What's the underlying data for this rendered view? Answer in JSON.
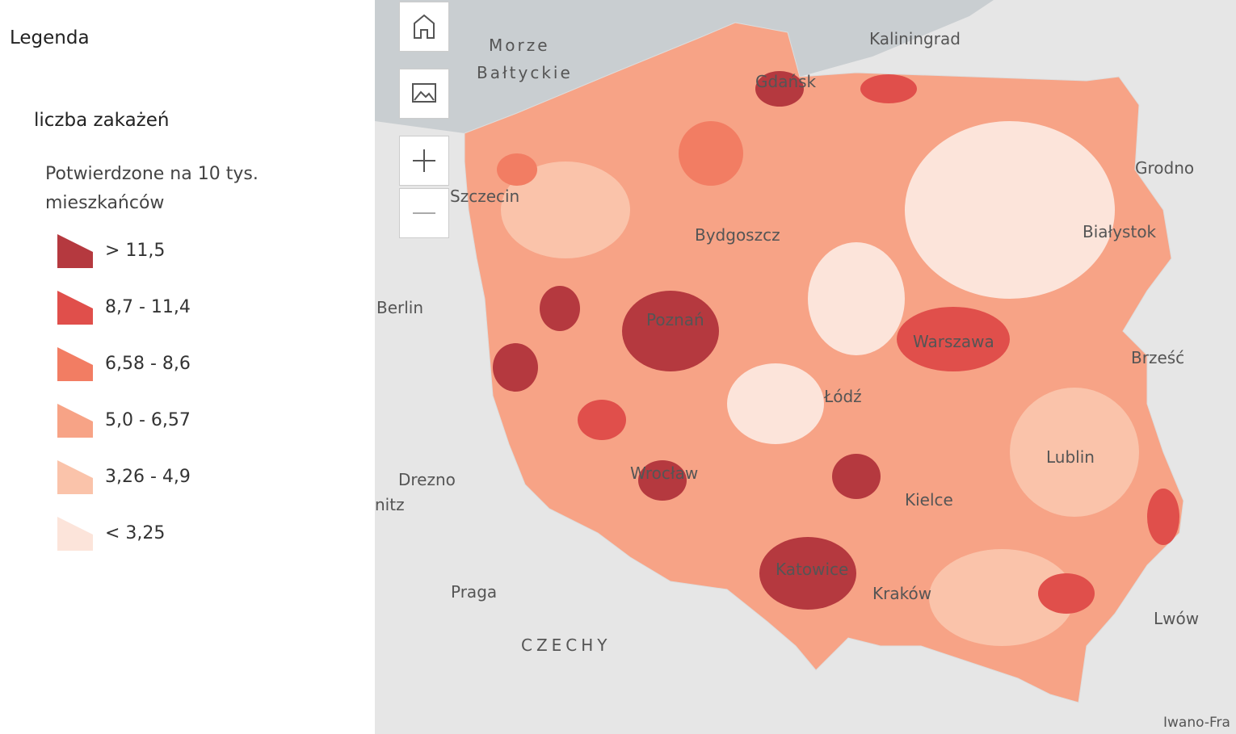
{
  "legend": {
    "title": "Legenda",
    "layer_title": "liczba zakażeń",
    "field_label": "Potwierdzone na 10 tys. mieszkańców",
    "items": [
      {
        "label": "> 11,5",
        "color": "#b5393f"
      },
      {
        "label": "8,7 - 11,4",
        "color": "#e04f4b"
      },
      {
        "label": "6,58 - 8,6",
        "color": "#f27d63"
      },
      {
        "label": "5,0 - 6,57",
        "color": "#f7a386"
      },
      {
        "label": "3,26 - 4,9",
        "color": "#fac3aa"
      },
      {
        "label": "< 3,25",
        "color": "#fce4da"
      }
    ]
  },
  "map": {
    "places": {
      "sea_line1": "Morze",
      "sea_line2": "Bałtyckie",
      "kaliningrad": "Kaliningrad",
      "gdansk": "Gdańsk",
      "grodno": "Grodno",
      "szczecin": "Szczecin",
      "bydgoszcz": "Bydgoszcz",
      "bialystok": "Białystok",
      "berlin": "Berlin",
      "poznan": "Poznań",
      "warszawa": "Warszawa",
      "brzesc": "Brześć",
      "lodz": "Łódź",
      "drezno": "Drezno",
      "chemnitz": "nitz",
      "wroclaw": "Wrocław",
      "lublin": "Lublin",
      "kielce": "Kielce",
      "praga": "Praga",
      "krakow": "Kraków",
      "katowice": "Katowice",
      "czechy": "CZECHY",
      "lwow": "Lwów",
      "iwano": "Iwano-Fra"
    }
  }
}
